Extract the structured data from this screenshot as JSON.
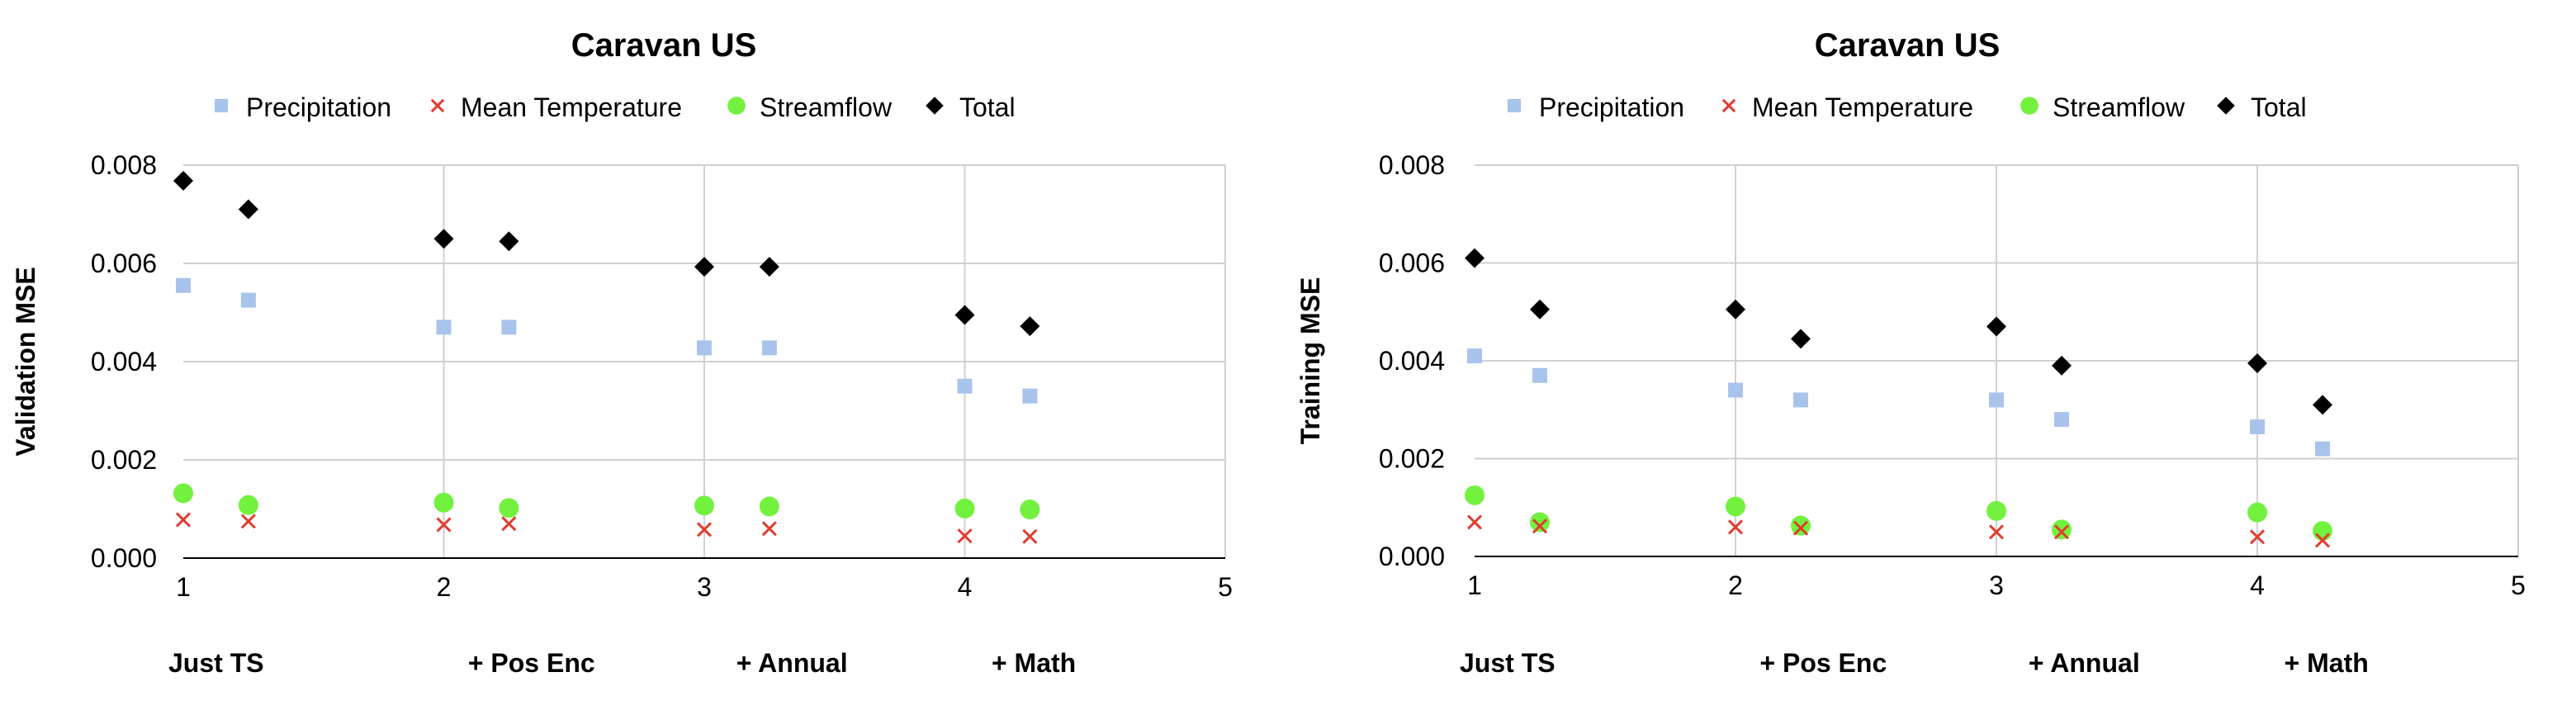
{
  "colors": {
    "precipitation": "#a9c4eb",
    "mean_temperature": "#e03c31",
    "streamflow": "#72f23e",
    "total": "#000000",
    "grid": "#d0d0d0"
  },
  "chart_data": [
    {
      "type": "scatter",
      "title": "Caravan US",
      "xlabel": "",
      "ylabel": "Validation MSE",
      "xlim": [
        1,
        5
      ],
      "ylim": [
        0,
        0.008
      ],
      "x_ticks": [
        "1",
        "2",
        "3",
        "4",
        "5"
      ],
      "y_ticks": [
        "0.000",
        "0.002",
        "0.004",
        "0.006",
        "0.008"
      ],
      "group_labels": [
        {
          "label": "Just TS",
          "x": 1.0
        },
        {
          "label": "+ Pos Enc",
          "x": 2.15
        },
        {
          "label": "+ Annual",
          "x": 3.18
        },
        {
          "label": "+ Math",
          "x": 4.16
        }
      ],
      "x": [
        1,
        1.25,
        2,
        2.25,
        3,
        3.25,
        4,
        4.25
      ],
      "series": [
        {
          "name": "Precipitation",
          "marker": "square",
          "values": [
            0.00555,
            0.00525,
            0.0047,
            0.0047,
            0.00428,
            0.00428,
            0.0035,
            0.0033
          ]
        },
        {
          "name": "Mean Temperature",
          "marker": "x",
          "values": [
            0.00078,
            0.00075,
            0.00068,
            0.0007,
            0.00058,
            0.0006,
            0.00045,
            0.00044
          ]
        },
        {
          "name": "Streamflow",
          "marker": "circle",
          "values": [
            0.00132,
            0.00108,
            0.00113,
            0.00102,
            0.00107,
            0.00105,
            0.00101,
            0.00099
          ]
        },
        {
          "name": "Total",
          "marker": "diamond",
          "values": [
            0.00768,
            0.0071,
            0.0065,
            0.00645,
            0.00593,
            0.00593,
            0.00495,
            0.00472
          ]
        }
      ],
      "legend_position": "top"
    },
    {
      "type": "scatter",
      "title": "Caravan US",
      "xlabel": "",
      "ylabel": "Training MSE",
      "xlim": [
        1,
        5
      ],
      "ylim": [
        0,
        0.008
      ],
      "x_ticks": [
        "1",
        "2",
        "3",
        "4",
        "5"
      ],
      "y_ticks": [
        "0.000",
        "0.002",
        "0.004",
        "0.006",
        "0.008"
      ],
      "group_labels": [
        {
          "label": "Just TS",
          "x": 1.0
        },
        {
          "label": "+ Pos Enc",
          "x": 2.15
        },
        {
          "label": "+ Annual",
          "x": 3.18
        },
        {
          "label": "+ Math",
          "x": 4.16
        }
      ],
      "x": [
        1,
        1.25,
        2,
        2.25,
        3,
        3.25,
        4,
        4.25
      ],
      "series": [
        {
          "name": "Precipitation",
          "marker": "square",
          "values": [
            0.0041,
            0.0037,
            0.0034,
            0.0032,
            0.0032,
            0.0028,
            0.00265,
            0.0022
          ]
        },
        {
          "name": "Mean Temperature",
          "marker": "x",
          "values": [
            0.0007,
            0.00062,
            0.0006,
            0.00058,
            0.0005,
            0.0005,
            0.0004,
            0.00033
          ]
        },
        {
          "name": "Streamflow",
          "marker": "circle",
          "values": [
            0.00125,
            0.0007,
            0.00102,
            0.00063,
            0.00093,
            0.00055,
            0.0009,
            0.00052
          ]
        },
        {
          "name": "Total",
          "marker": "diamond",
          "values": [
            0.0061,
            0.00505,
            0.00505,
            0.00445,
            0.0047,
            0.0039,
            0.00395,
            0.0031
          ]
        }
      ],
      "legend_position": "top"
    }
  ]
}
